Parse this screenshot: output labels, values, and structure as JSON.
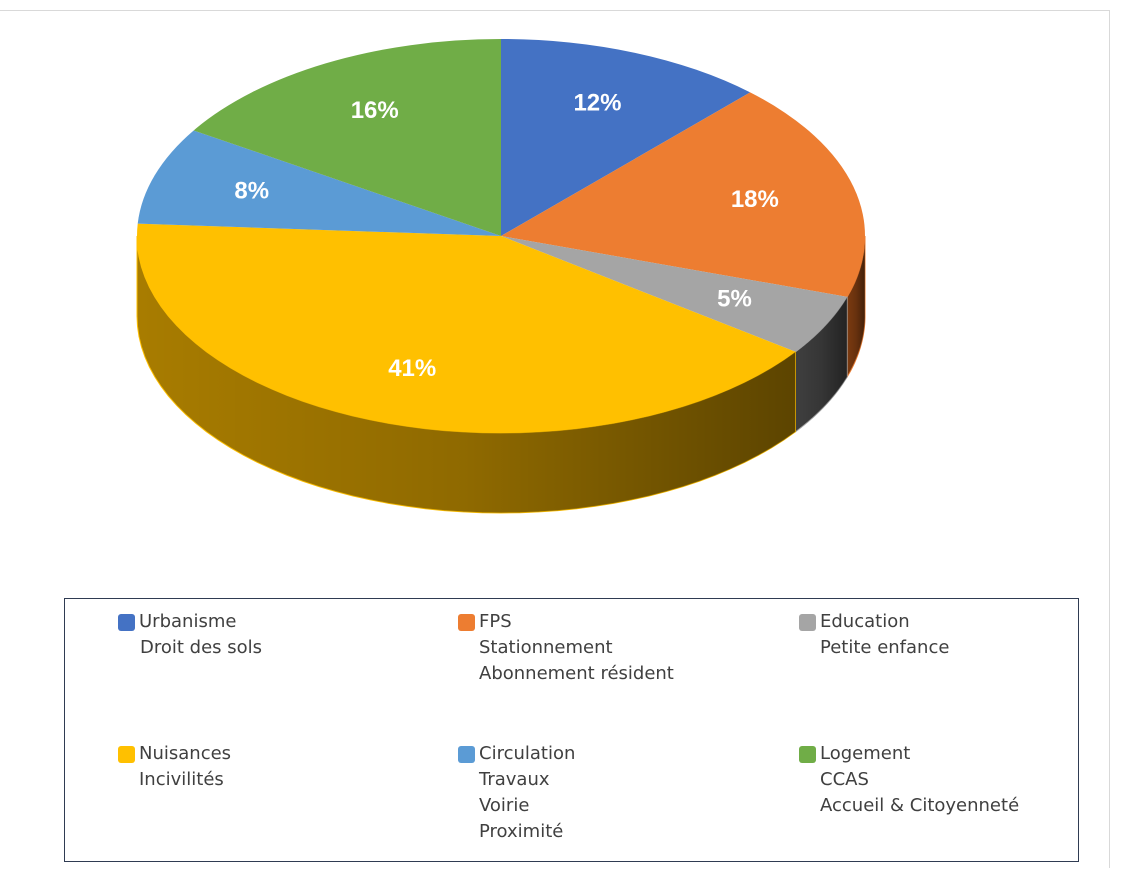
{
  "chart_data": {
    "type": "pie",
    "style": "3d",
    "title": "",
    "start_angle_note": "clockwise from top",
    "slices": [
      {
        "label_lines": [
          "Urbanisme",
          "Droit des sols"
        ],
        "value": 12,
        "label": "12%",
        "color": "#4472C4",
        "side_color": "#2F4F8A"
      },
      {
        "label_lines": [
          "FPS",
          "Stationnement",
          "Abonnement résident"
        ],
        "value": 18,
        "label": "18%",
        "color": "#ED7D31",
        "side_color": "#7A3A10"
      },
      {
        "label_lines": [
          "Education",
          "Petite enfance"
        ],
        "value": 5,
        "label": "5%",
        "color": "#A5A5A5",
        "side_color": "#3F3F3F"
      },
      {
        "label_lines": [
          "Nuisances",
          "Incivilités"
        ],
        "value": 41,
        "label": "41%",
        "color": "#FFC000",
        "side_color": "#A87C00"
      },
      {
        "label_lines": [
          "Circulation",
          "Travaux",
          "Voirie",
          "Proximité"
        ],
        "value": 8,
        "label": "8%",
        "color": "#5B9BD5",
        "side_color": "#3A6E9E"
      },
      {
        "label_lines": [
          "Logement",
          "CCAS",
          "Accueil & Citoyenneté"
        ],
        "value": 16,
        "label": "16%",
        "color": "#70AD47",
        "side_color": "#3F6A22"
      }
    ],
    "legend_position": "bottom"
  }
}
